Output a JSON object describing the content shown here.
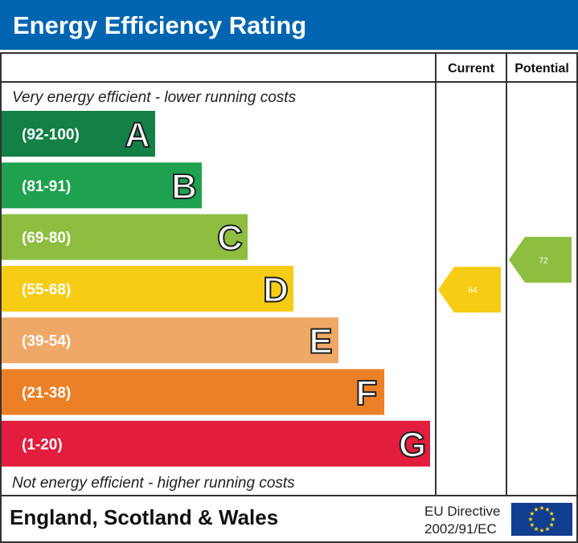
{
  "chart_data": {
    "type": "bar",
    "title": "Energy Efficiency Rating",
    "top_note": "Very energy efficient - lower running costs",
    "bottom_note": "Not energy efficient - higher running costs",
    "columns": [
      "Current",
      "Potential"
    ],
    "bands": [
      {
        "letter": "A",
        "range": "(92-100)",
        "color": "#138045"
      },
      {
        "letter": "B",
        "range": "(81-91)",
        "color": "#1ea24f"
      },
      {
        "letter": "C",
        "range": "(69-80)",
        "color": "#8dbe40"
      },
      {
        "letter": "D",
        "range": "(55-68)",
        "color": "#f6cc15"
      },
      {
        "letter": "E",
        "range": "(39-54)",
        "color": "#f0a867"
      },
      {
        "letter": "F",
        "range": "(21-38)",
        "color": "#ec8026"
      },
      {
        "letter": "G",
        "range": "(1-20)",
        "color": "#e21d3d"
      }
    ],
    "current": {
      "value": 64,
      "band": "D",
      "color": "#f6cc15"
    },
    "potential": {
      "value": 72,
      "band": "C",
      "color": "#8dbe40"
    }
  },
  "footer": {
    "region": "England, Scotland & Wales",
    "directive_line1": "EU Directive",
    "directive_line2": "2002/91/EC",
    "flag_icon": "eu-flag-icon"
  },
  "colors": {
    "header": "#0065b1",
    "eu_flag": "#123e8f",
    "eu_star": "#f7d417"
  }
}
